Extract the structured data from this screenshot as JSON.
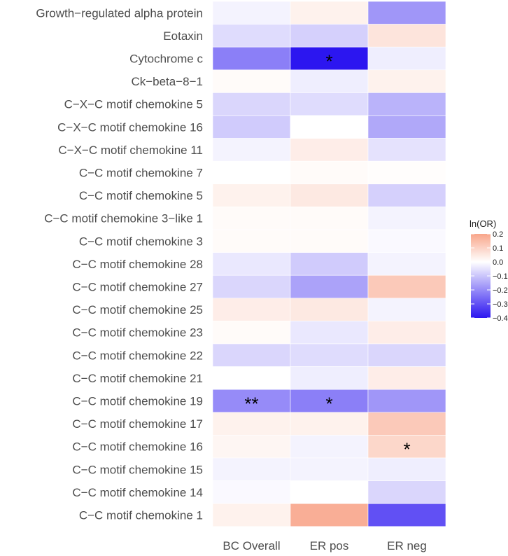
{
  "chart_data": {
    "type": "heatmap",
    "title": "",
    "xlabel": "",
    "ylabel": "",
    "columns": [
      "BC Overall",
      "ER pos",
      "ER neg"
    ],
    "rows": [
      "Growth−regulated alpha protein",
      "Eotaxin",
      "Cytochrome c",
      "Ck−beta−8−1",
      "C−X−C motif chemokine 5",
      "C−X−C motif chemokine 16",
      "C−X−C motif chemokine 11",
      "C−C motif chemokine 7",
      "C−C motif chemokine 5",
      "C−C motif chemokine 3−like 1",
      "C−C motif chemokine 3",
      "C−C motif chemokine 28",
      "C−C motif chemokine 27",
      "C−C motif chemokine 25",
      "C−C motif chemokine 23",
      "C−C motif chemokine 22",
      "C−C motif chemokine 21",
      "C−C motif chemokine 19",
      "C−C motif chemokine 17",
      "C−C motif chemokine 16",
      "C−C motif chemokine 15",
      "C−C motif chemokine 14",
      "C−C motif chemokine 1"
    ],
    "values": [
      [
        -0.02,
        0.03,
        -0.18
      ],
      [
        -0.06,
        -0.08,
        0.06
      ],
      [
        -0.22,
        -0.4,
        -0.03
      ],
      [
        0.01,
        -0.03,
        0.03
      ],
      [
        -0.07,
        -0.06,
        -0.13
      ],
      [
        -0.09,
        0.0,
        -0.15
      ],
      [
        -0.02,
        0.04,
        -0.05
      ],
      [
        0.0,
        0.01,
        0.005
      ],
      [
        0.03,
        0.05,
        -0.08
      ],
      [
        0.01,
        0.01,
        -0.02
      ],
      [
        0.01,
        0.01,
        -0.01
      ],
      [
        -0.04,
        -0.09,
        -0.02
      ],
      [
        -0.07,
        -0.16,
        0.12
      ],
      [
        0.04,
        0.05,
        -0.02
      ],
      [
        0.01,
        -0.04,
        0.04
      ],
      [
        -0.07,
        -0.06,
        -0.07
      ],
      [
        0.0,
        -0.03,
        0.04
      ],
      [
        -0.2,
        -0.22,
        -0.18
      ],
      [
        0.03,
        0.03,
        0.12
      ],
      [
        0.02,
        -0.02,
        0.09
      ],
      [
        -0.02,
        -0.02,
        -0.03
      ],
      [
        -0.01,
        0.0,
        -0.07
      ],
      [
        0.03,
        0.18,
        -0.3
      ]
    ],
    "annotations": [
      {
        "row": 2,
        "col": 1,
        "text": "*"
      },
      {
        "row": 17,
        "col": 0,
        "text": "**"
      },
      {
        "row": 17,
        "col": 1,
        "text": "*"
      },
      {
        "row": 19,
        "col": 2,
        "text": "*"
      }
    ],
    "legend": {
      "title": "ln(OR)",
      "range": [
        -0.4,
        0.2
      ],
      "ticks": [
        "0.2",
        "0.1",
        "0.0",
        "−0.1",
        "−0.2",
        "−0.3",
        "−0.4"
      ],
      "tick_values": [
        0.2,
        0.1,
        0.0,
        -0.1,
        -0.2,
        -0.3,
        -0.4
      ],
      "position": "right"
    },
    "colors": {
      "high": "#f8a58a",
      "mid": "#ffffff",
      "low": "#2c16f0",
      "text": "#4d4d4d",
      "star": "#000000"
    }
  }
}
